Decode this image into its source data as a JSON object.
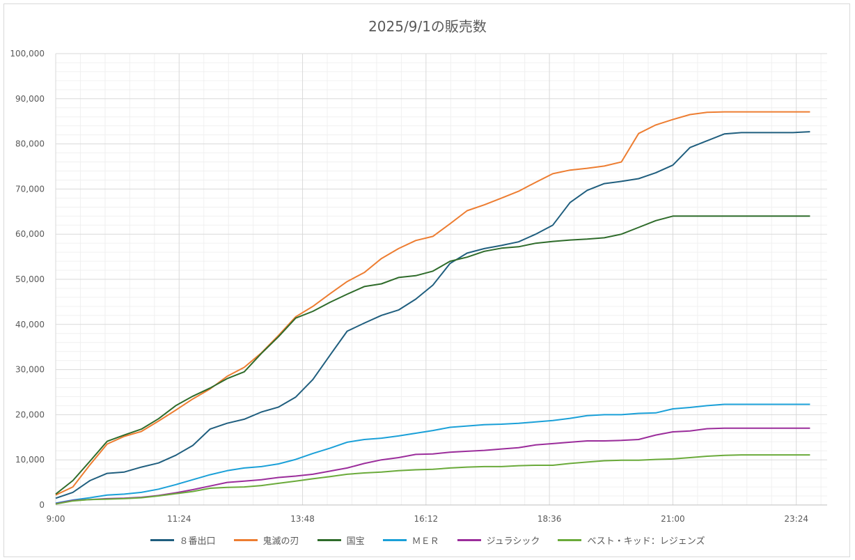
{
  "chart_data": {
    "type": "line",
    "title": "2025/9/1の販売数",
    "xlabel": "",
    "ylabel": "",
    "ylim": [
      0,
      100000
    ],
    "y_ticks": [
      "0",
      "10,000",
      "20,000",
      "30,000",
      "40,000",
      "50,000",
      "60,000",
      "70,000",
      "80,000",
      "90,000",
      "100,000"
    ],
    "x_ticks": [
      "9:00",
      "11:24",
      "13:48",
      "16:12",
      "18:36",
      "21:00",
      "23:24"
    ],
    "x": [
      "9:00",
      "9:20",
      "9:40",
      "10:00",
      "10:20",
      "10:40",
      "11:00",
      "11:20",
      "11:40",
      "12:00",
      "12:20",
      "12:40",
      "13:00",
      "13:20",
      "13:40",
      "14:00",
      "14:20",
      "14:40",
      "15:00",
      "15:20",
      "15:40",
      "16:00",
      "16:20",
      "16:40",
      "17:00",
      "17:20",
      "17:40",
      "18:00",
      "18:20",
      "18:40",
      "19:00",
      "19:20",
      "19:40",
      "20:00",
      "20:20",
      "20:40",
      "21:00",
      "21:20",
      "21:40",
      "22:00",
      "22:20",
      "22:40",
      "23:00",
      "23:20",
      "23:40"
    ],
    "grid": true,
    "legend_position": "bottom",
    "series": [
      {
        "name": "８番出口",
        "color": "#1f5e7e",
        "values": [
          1500,
          2800,
          5400,
          7000,
          7300,
          8400,
          9300,
          11000,
          13200,
          16800,
          18100,
          19000,
          20600,
          21700,
          23900,
          27800,
          33200,
          38500,
          40300,
          42000,
          43200,
          45600,
          48700,
          53500,
          55800,
          56800,
          57500,
          58300,
          60000,
          62000,
          67000,
          69700,
          71200,
          71700,
          72300,
          73600,
          75300,
          79200,
          80700,
          82200,
          82500,
          82500,
          82500,
          82500,
          82700
        ]
      },
      {
        "name": "鬼滅の刃",
        "color": "#ed7d31",
        "values": [
          2200,
          4000,
          8900,
          13500,
          15200,
          16300,
          18600,
          21000,
          23500,
          25700,
          28500,
          30500,
          33700,
          37600,
          41700,
          44000,
          46800,
          49500,
          51500,
          54600,
          56800,
          58600,
          59500,
          62300,
          65200,
          66500,
          68000,
          69500,
          71500,
          73400,
          74200,
          74600,
          75100,
          76000,
          82300,
          84200,
          85400,
          86500,
          87000,
          87100,
          87100,
          87100,
          87100,
          87100,
          87100
        ]
      },
      {
        "name": "国宝",
        "color": "#2e6b2a",
        "values": [
          2400,
          5400,
          9700,
          14100,
          15500,
          16800,
          19100,
          22000,
          24100,
          25900,
          28000,
          29500,
          33600,
          37300,
          41400,
          42900,
          44900,
          46700,
          48400,
          49000,
          50400,
          50800,
          51800,
          54000,
          54900,
          56200,
          56900,
          57200,
          58000,
          58400,
          58700,
          58900,
          59200,
          60000,
          61500,
          63000,
          64000,
          64000,
          64000,
          64000,
          64000,
          64000,
          64000,
          64000,
          64000
        ]
      },
      {
        "name": "ＭＥＲ",
        "color": "#1aa0d8",
        "values": [
          400,
          1100,
          1600,
          2200,
          2400,
          2800,
          3500,
          4500,
          5600,
          6700,
          7600,
          8200,
          8500,
          9100,
          10100,
          11400,
          12600,
          13900,
          14500,
          14800,
          15300,
          15900,
          16500,
          17200,
          17500,
          17800,
          17900,
          18100,
          18400,
          18700,
          19200,
          19800,
          20000,
          20000,
          20300,
          20400,
          21300,
          21600,
          22000,
          22300,
          22300,
          22300,
          22300,
          22300,
          22300
        ]
      },
      {
        "name": "ジュラシック",
        "color": "#9b2d9b",
        "values": [
          300,
          1000,
          1200,
          1400,
          1500,
          1700,
          2100,
          2700,
          3400,
          4200,
          5000,
          5300,
          5600,
          6100,
          6400,
          6800,
          7500,
          8200,
          9200,
          10000,
          10500,
          11200,
          11300,
          11700,
          11900,
          12100,
          12400,
          12700,
          13300,
          13600,
          13900,
          14200,
          14200,
          14300,
          14500,
          15500,
          16200,
          16400,
          16900,
          17000,
          17000,
          17000,
          17000,
          17000,
          17000
        ]
      },
      {
        "name": "ベスト・キッド：レジェンズ",
        "color": "#6aaa3a",
        "values": [
          200,
          900,
          1200,
          1300,
          1400,
          1600,
          2000,
          2500,
          3000,
          3700,
          3900,
          4000,
          4300,
          4800,
          5300,
          5800,
          6300,
          6800,
          7100,
          7300,
          7600,
          7800,
          7900,
          8200,
          8400,
          8500,
          8500,
          8700,
          8800,
          8800,
          9200,
          9500,
          9800,
          9900,
          9900,
          10100,
          10200,
          10500,
          10800,
          11000,
          11100,
          11100,
          11100,
          11100,
          11100
        ]
      }
    ]
  }
}
